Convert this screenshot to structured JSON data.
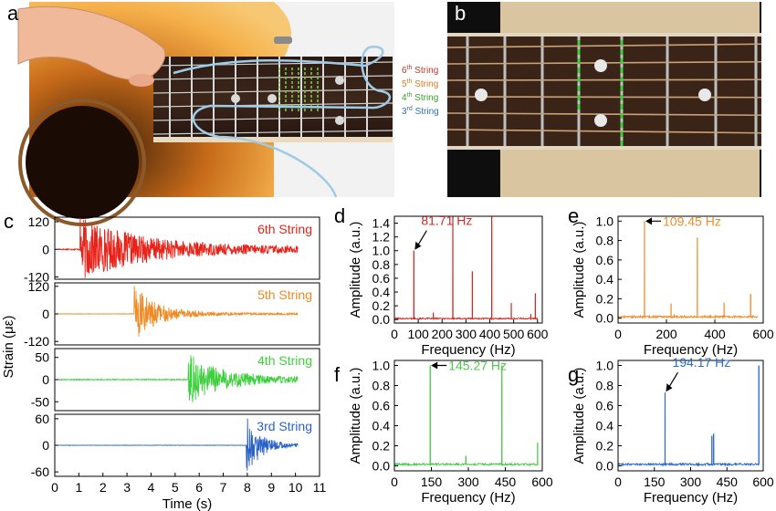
{
  "panels": {
    "a": {
      "letter": "a",
      "string_labels": [
        {
          "num": "6",
          "suffix": "th",
          "word": " String",
          "color": "#c0392b"
        },
        {
          "num": "5",
          "suffix": "th",
          "word": " String",
          "color": "#e07b1f"
        },
        {
          "num": "4",
          "suffix": "th",
          "word": " String",
          "color": "#3a9d2d"
        },
        {
          "num": "3",
          "suffix": "rd",
          "word": " String",
          "color": "#2e6fb8"
        }
      ]
    },
    "b": {
      "letter": "b"
    }
  },
  "chart_data": [
    {
      "id": "c",
      "letter": "c",
      "type": "line",
      "xlabel": "Time (s)",
      "ylabel": "Strain (με)",
      "xlim": [
        0,
        11
      ],
      "xticks": [
        "0",
        "1",
        "2",
        "3",
        "4",
        "5",
        "6",
        "7",
        "8",
        "9",
        "10",
        "11"
      ],
      "series": [
        {
          "name": "6th String",
          "color": "#e8231a",
          "onset_s": 1.05,
          "peak": 130,
          "decay_s": 2.6,
          "floor": 12,
          "ylim": [
            -130,
            140
          ],
          "yticks": [
            120,
            0,
            -120
          ],
          "ytick_labels": [
            "120",
            "0",
            "-120"
          ]
        },
        {
          "name": "5th String",
          "color": "#f08a24",
          "onset_s": 3.3,
          "peak": 120,
          "decay_s": 1.0,
          "floor": 4,
          "ylim": [
            -135,
            135
          ],
          "yticks": [
            120,
            0,
            -120
          ],
          "ytick_labels": [
            "120",
            "0",
            "-120"
          ]
        },
        {
          "name": "4th String",
          "color": "#3ecf3e",
          "onset_s": 5.55,
          "peak": 55,
          "decay_s": 1.4,
          "floor": 5,
          "ylim": [
            -70,
            70
          ],
          "yticks": [
            50,
            0,
            -50
          ],
          "ytick_labels": [
            "50",
            "0",
            "-50"
          ]
        },
        {
          "name": "3rd String",
          "color": "#2a63c8",
          "onset_s": 7.95,
          "peak": 70,
          "decay_s": 0.6,
          "floor": 2,
          "ylim": [
            -70,
            70
          ],
          "yticks": [
            60,
            0,
            -60
          ],
          "ytick_labels": [
            "60",
            "0",
            "-60"
          ]
        }
      ]
    },
    {
      "id": "d",
      "letter": "d",
      "type": "line",
      "color": "#cc2b2b",
      "xlabel": "Frequency (Hz)",
      "ylabel": "Amplitude (a.u.)",
      "xlim": [
        0,
        620
      ],
      "xticks": [
        0,
        100,
        200,
        300,
        400,
        500,
        600
      ],
      "ylim": [
        -0.05,
        1.5
      ],
      "yticks": [
        "0.0",
        "0.2",
        "0.4",
        "0.6",
        "0.8",
        "1.0",
        "1.2",
        "1.4"
      ],
      "annotation": "81.71 Hz",
      "peaks": [
        [
          81.71,
          1.0
        ],
        [
          163,
          0.1
        ],
        [
          245,
          1.5
        ],
        [
          327,
          0.7
        ],
        [
          408,
          1.5
        ],
        [
          490,
          0.24
        ],
        [
          572,
          0.08
        ],
        [
          591,
          0.38
        ]
      ]
    },
    {
      "id": "e",
      "letter": "e",
      "type": "line",
      "color": "#ef8d2a",
      "xlabel": "Frequency (Hz)",
      "ylabel": "Amplitude (a.u.)",
      "xlim": [
        0,
        600
      ],
      "xticks": [
        0,
        200,
        400,
        600
      ],
      "ylim": [
        -0.05,
        1.05
      ],
      "yticks": [
        "0.0",
        "0.2",
        "0.4",
        "0.6",
        "0.8",
        "1.0"
      ],
      "annotation": "109.45 Hz",
      "peaks": [
        [
          109.45,
          1.0
        ],
        [
          219,
          0.15
        ],
        [
          232,
          0.04
        ],
        [
          328,
          0.83
        ],
        [
          438,
          0.16
        ],
        [
          548,
          0.25
        ]
      ]
    },
    {
      "id": "f",
      "letter": "f",
      "type": "line",
      "color": "#4cc94c",
      "xlabel": "Frequency (Hz)",
      "ylabel": "Amplitude (a.u.)",
      "xlim": [
        0,
        600
      ],
      "xticks": [
        0,
        150,
        300,
        450,
        600
      ],
      "ylim": [
        -0.05,
        1.05
      ],
      "yticks": [
        "0.0",
        "0.2",
        "0.4",
        "0.6",
        "0.8",
        "1.0"
      ],
      "annotation": "145.27 Hz",
      "peaks": [
        [
          145.27,
          1.0
        ],
        [
          290,
          0.1
        ],
        [
          436,
          1.0
        ],
        [
          581,
          0.23
        ]
      ]
    },
    {
      "id": "g",
      "letter": "g",
      "type": "line",
      "color": "#2f6cc4",
      "xlabel": "Frequency (Hz)",
      "ylabel": "Amplitude (a.u.)",
      "xlim": [
        0,
        600
      ],
      "xticks": [
        0,
        150,
        300,
        450,
        600
      ],
      "ylim": [
        -0.05,
        1.05
      ],
      "yticks": [
        "0.0",
        "0.2",
        "0.4",
        "0.6",
        "0.8",
        "1.0"
      ],
      "annotation": "194.17 Hz",
      "peaks": [
        [
          194.17,
          0.73
        ],
        [
          388,
          0.3
        ],
        [
          395,
          0.32
        ],
        [
          582,
          1.0
        ]
      ]
    }
  ]
}
